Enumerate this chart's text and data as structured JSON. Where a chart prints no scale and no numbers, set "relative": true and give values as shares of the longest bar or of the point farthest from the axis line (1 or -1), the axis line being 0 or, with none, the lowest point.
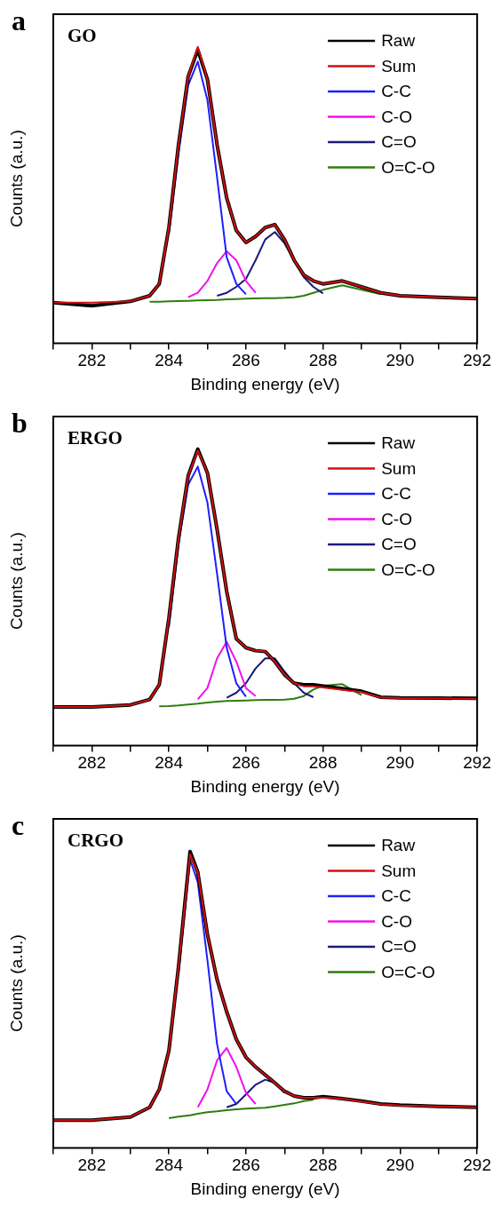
{
  "chart_data": [
    {
      "type": "line",
      "title": "GO",
      "annotations": [
        "a"
      ],
      "xlabel": "Binding energy (eV)",
      "ylabel": "Counts (a.u.)",
      "relative": true,
      "legend": "top right",
      "xlim": [
        281,
        292
      ],
      "xticks": [
        {
          "value": 281,
          "label": null
        },
        282,
        {
          "value": 283,
          "label": null
        },
        284,
        {
          "value": 285,
          "label": null
        },
        286,
        {
          "value": 287,
          "label": null
        },
        288,
        {
          "value": 289,
          "label": null
        },
        290,
        {
          "value": 291,
          "label": null
        },
        292
      ],
      "x": [
        281,
        282,
        283,
        283.5,
        283.75,
        284,
        284.25,
        284.5,
        284.75,
        285,
        285.25,
        285.5,
        285.75,
        286,
        286.25,
        286.5,
        286.75,
        287,
        287.25,
        287.5,
        287.75,
        288,
        288.5,
        289,
        289.5,
        290,
        291,
        292
      ],
      "series": [
        {
          "name": "Raw",
          "color": "#000000",
          "values": [
            0.137,
            0.126,
            0.141,
            0.16,
            0.2,
            0.39,
            0.67,
            0.9,
            0.99,
            0.89,
            0.67,
            0.49,
            0.38,
            0.34,
            0.36,
            0.39,
            0.4,
            0.35,
            0.28,
            0.23,
            0.21,
            0.2,
            0.21,
            0.19,
            0.17,
            0.16,
            0.155,
            0.15
          ]
        },
        {
          "name": "Sum",
          "color": "#d01010",
          "values": [
            0.137,
            0.137,
            0.141,
            0.16,
            0.2,
            0.39,
            0.67,
            0.9,
            1.0,
            0.89,
            0.67,
            0.49,
            0.38,
            0.34,
            0.36,
            0.39,
            0.4,
            0.35,
            0.28,
            0.23,
            0.21,
            0.2,
            0.21,
            0.19,
            0.17,
            0.16,
            0.155,
            0.15
          ]
        },
        {
          "name": "C-C",
          "color": "#1e1eff",
          "x": [
            284,
            284.25,
            284.5,
            284.75,
            285,
            285.25,
            285.5,
            285.75,
            286
          ],
          "values": [
            0.37,
            0.64,
            0.87,
            0.95,
            0.82,
            0.56,
            0.29,
            0.2,
            0.165
          ]
        },
        {
          "name": "C-O",
          "color": "#ee11ee",
          "x": [
            284.5,
            284.75,
            285,
            285.25,
            285.5,
            285.75,
            286,
            286.25
          ],
          "values": [
            0.155,
            0.17,
            0.21,
            0.27,
            0.31,
            0.28,
            0.21,
            0.17
          ]
        },
        {
          "name": "C=O",
          "color": "#1a1a7a",
          "x": [
            285.25,
            285.5,
            285.75,
            286,
            286.25,
            286.5,
            286.75,
            287,
            287.25,
            287.5,
            287.75,
            288
          ],
          "values": [
            0.16,
            0.17,
            0.19,
            0.217,
            0.28,
            0.35,
            0.375,
            0.337,
            0.28,
            0.223,
            0.19,
            0.168
          ]
        },
        {
          "name": "O=C-O",
          "color": "#2e7d10",
          "x": [
            283.5,
            283.75,
            284,
            284.25,
            284.5,
            284.75,
            285,
            285.25,
            285.5,
            285.75,
            286,
            286.25,
            286.5,
            286.75,
            287,
            287.25,
            287.5,
            287.75,
            288,
            288.5,
            289,
            289.5
          ],
          "values": [
            0.14,
            0.14,
            0.141,
            0.142,
            0.143,
            0.144,
            0.145,
            0.146,
            0.148,
            0.149,
            0.15,
            0.151,
            0.152,
            0.152,
            0.153,
            0.155,
            0.16,
            0.17,
            0.18,
            0.195,
            0.18,
            0.165
          ]
        }
      ]
    },
    {
      "type": "line",
      "title": "ERGO",
      "annotations": [
        "b"
      ],
      "xlabel": "Binding energy (eV)",
      "ylabel": "Counts (a.u.)",
      "relative": true,
      "legend": "top right",
      "xlim": [
        281,
        292
      ],
      "xticks": [
        {
          "value": 281,
          "label": null
        },
        282,
        {
          "value": 283,
          "label": null
        },
        284,
        {
          "value": 285,
          "label": null
        },
        286,
        {
          "value": 287,
          "label": null
        },
        288,
        {
          "value": 289,
          "label": null
        },
        290,
        {
          "value": 291,
          "label": null
        },
        292
      ],
      "x": [
        281,
        282,
        283,
        283.5,
        283.75,
        284,
        284.25,
        284.5,
        284.75,
        285,
        285.25,
        285.5,
        285.75,
        286,
        286.25,
        286.5,
        286.75,
        287,
        287.25,
        287.5,
        287.75,
        288,
        288.5,
        289,
        289.5,
        290,
        291,
        292
      ],
      "series": [
        {
          "name": "Raw",
          "color": "#000000",
          "values": [
            0.13,
            0.13,
            0.137,
            0.155,
            0.205,
            0.43,
            0.7,
            0.91,
            1.0,
            0.92,
            0.73,
            0.52,
            0.36,
            0.33,
            0.32,
            0.317,
            0.283,
            0.239,
            0.21,
            0.205,
            0.205,
            null,
            null,
            0.183,
            0.163,
            0.161,
            0.16,
            0.159
          ]
        },
        {
          "name": "Sum",
          "color": "#d01010",
          "values": [
            0.13,
            0.13,
            0.137,
            0.155,
            0.205,
            0.43,
            0.7,
            0.91,
            0.995,
            0.92,
            0.73,
            0.52,
            0.36,
            0.33,
            0.32,
            0.317,
            0.283,
            0.239,
            0.21,
            0.2,
            0.2,
            null,
            null,
            0.18,
            0.162,
            0.16,
            0.159,
            0.158
          ]
        },
        {
          "name": "C-C",
          "color": "#1e1eff",
          "x": [
            284,
            284.25,
            284.5,
            284.75,
            285,
            285.25,
            285.5,
            285.75,
            286
          ],
          "values": [
            0.4,
            0.68,
            0.88,
            0.941,
            0.82,
            0.58,
            0.33,
            0.21,
            0.165
          ]
        },
        {
          "name": "C-O",
          "color": "#ee11ee",
          "x": [
            284.75,
            285,
            285.25,
            285.5,
            285.75,
            286,
            286.25
          ],
          "values": [
            0.156,
            0.194,
            0.294,
            0.35,
            0.283,
            0.194,
            0.167
          ]
        },
        {
          "name": "C=O",
          "color": "#1a1a7a",
          "x": [
            285.5,
            285.75,
            286,
            286.25,
            286.5,
            286.75,
            287,
            287.25,
            287.5,
            287.75
          ],
          "values": [
            0.161,
            0.178,
            0.21,
            0.26,
            0.294,
            0.294,
            0.25,
            0.21,
            0.178,
            0.163
          ]
        },
        {
          "name": "O=C-O",
          "color": "#2e7d10",
          "x": [
            283.75,
            284,
            284.25,
            284.5,
            284.75,
            285,
            285.25,
            285.5,
            285.75,
            286,
            286.25,
            286.5,
            286.75,
            287,
            287.25,
            287.5,
            287.75,
            288,
            288.5,
            289
          ],
          "values": [
            0.132,
            0.133,
            0.135,
            0.138,
            0.141,
            0.145,
            0.148,
            0.15,
            0.151,
            0.152,
            0.153,
            0.154,
            0.154,
            0.155,
            0.158,
            0.167,
            0.189,
            0.202,
            0.207,
            0.17
          ]
        }
      ]
    },
    {
      "type": "line",
      "title": "CRGO",
      "annotations": [
        "c"
      ],
      "xlabel": "Binding energy (eV)",
      "ylabel": "Counts (a.u.)",
      "relative": true,
      "legend": "top right",
      "xlim": [
        281,
        292
      ],
      "xticks": [
        {
          "value": 281,
          "label": null
        },
        282,
        {
          "value": 283,
          "label": null
        },
        284,
        {
          "value": 285,
          "label": null
        },
        286,
        {
          "value": 287,
          "label": null
        },
        288,
        {
          "value": 289,
          "label": null
        },
        290,
        {
          "value": 291,
          "label": null
        },
        292
      ],
      "x": [
        281,
        282,
        283,
        283.5,
        283.75,
        284,
        284.25,
        284.55,
        284.75,
        285,
        285.25,
        285.5,
        285.75,
        286,
        286.25,
        286.5,
        286.75,
        287,
        287.25,
        287.5,
        287.75,
        288,
        288.5,
        289,
        289.5,
        290,
        291,
        292
      ],
      "series": [
        {
          "name": "Raw",
          "color": "#000000",
          "values": [
            0.093,
            0.093,
            0.104,
            0.137,
            0.197,
            0.328,
            0.612,
            1.0,
            0.93,
            0.72,
            0.568,
            0.459,
            0.366,
            0.306,
            0.273,
            0.246,
            0.219,
            0.191,
            0.175,
            0.169,
            0.169,
            0.173,
            0.166,
            0.158,
            0.148,
            0.144,
            0.14,
            0.137
          ]
        },
        {
          "name": "Sum",
          "color": "#d01010",
          "values": [
            0.093,
            0.093,
            0.104,
            0.137,
            0.197,
            0.328,
            0.612,
            0.99,
            0.93,
            0.72,
            0.568,
            0.459,
            0.366,
            0.306,
            0.273,
            0.246,
            0.219,
            0.191,
            0.175,
            0.169,
            0.169,
            0.17,
            0.166,
            0.156,
            0.147,
            0.143,
            0.14,
            0.137
          ]
        },
        {
          "name": "C-C",
          "color": "#1e1eff",
          "x": [
            284.25,
            284.55,
            284.75,
            285,
            285.25,
            285.5,
            285.75
          ],
          "values": [
            0.59,
            0.973,
            0.896,
            0.634,
            0.35,
            0.191,
            0.148
          ]
        },
        {
          "name": "C-O",
          "color": "#ee11ee",
          "x": [
            284.75,
            285,
            285.25,
            285.5,
            285.75,
            286,
            286.25
          ],
          "values": [
            0.137,
            0.197,
            0.295,
            0.337,
            0.273,
            0.186,
            0.148
          ]
        },
        {
          "name": "C=O",
          "color": "#1a1a7a",
          "x": [
            285.5,
            285.75,
            286,
            286.25,
            286.5,
            286.75,
            287
          ],
          "values": [
            0.137,
            0.148,
            0.18,
            0.213,
            0.23,
            0.219,
            0.186
          ]
        },
        {
          "name": "O=C-O",
          "color": "#2e7d10",
          "x": [
            284,
            284.25,
            284.55,
            284.75,
            285,
            285.25,
            285.5,
            285.75,
            286,
            286.25,
            286.5,
            286.75,
            287,
            287.25,
            287.5,
            287.75
          ],
          "values": [
            0.1,
            0.105,
            0.11,
            0.115,
            0.12,
            0.123,
            0.127,
            0.13,
            0.132,
            0.134,
            0.135,
            0.14,
            0.145,
            0.15,
            0.158,
            0.162
          ]
        }
      ]
    }
  ]
}
